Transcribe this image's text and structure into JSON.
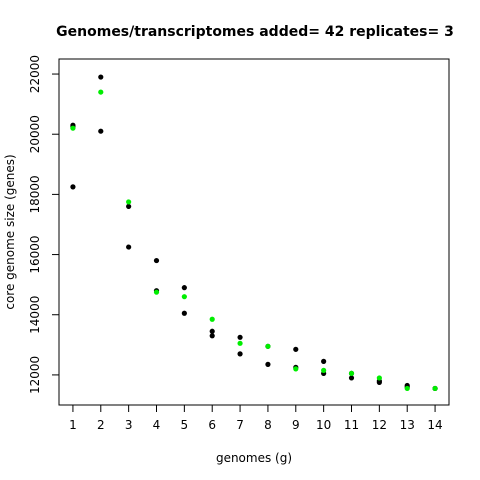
{
  "chart_data": {
    "type": "scatter",
    "title": "Genomes/transcriptomes added= 42  replicates= 3",
    "xlabel": "genomes (g)",
    "ylabel": "core genome size (genes)",
    "xlim": [
      0.5,
      14.5
    ],
    "ylim": [
      11000,
      22500
    ],
    "x_ticks": [
      1,
      2,
      3,
      4,
      5,
      6,
      7,
      8,
      9,
      10,
      11,
      12,
      13,
      14
    ],
    "y_ticks": [
      12000,
      14000,
      16000,
      18000,
      20000,
      22000
    ],
    "grid": false,
    "legend": "none",
    "series": [
      {
        "color": "#000000",
        "points": [
          [
            1,
            18250
          ],
          [
            1,
            20250
          ],
          [
            1,
            20300
          ],
          [
            2,
            20100
          ],
          [
            2,
            21900
          ],
          [
            3,
            16250
          ],
          [
            3,
            17600
          ],
          [
            4,
            15800
          ],
          [
            4,
            14800
          ],
          [
            5,
            14900
          ],
          [
            5,
            14050
          ],
          [
            6,
            13450
          ],
          [
            6,
            13300
          ],
          [
            7,
            13250
          ],
          [
            7,
            12700
          ],
          [
            8,
            12950
          ],
          [
            8,
            12350
          ],
          [
            9,
            12850
          ],
          [
            9,
            12250
          ],
          [
            10,
            12450
          ],
          [
            10,
            12050
          ],
          [
            11,
            12050
          ],
          [
            11,
            11900
          ],
          [
            12,
            11800
          ],
          [
            12,
            11750
          ],
          [
            13,
            11650
          ],
          [
            13,
            11600
          ],
          [
            14,
            11550
          ],
          [
            14,
            11550
          ]
        ]
      },
      {
        "color": "#00ee00",
        "points": [
          [
            1,
            20200
          ],
          [
            2,
            21400
          ],
          [
            3,
            17750
          ],
          [
            4,
            14750
          ],
          [
            5,
            14600
          ],
          [
            6,
            13850
          ],
          [
            7,
            13050
          ],
          [
            8,
            12950
          ],
          [
            9,
            12200
          ],
          [
            10,
            12150
          ],
          [
            11,
            12050
          ],
          [
            12,
            11900
          ],
          [
            13,
            11550
          ],
          [
            14,
            11550
          ]
        ]
      }
    ]
  }
}
